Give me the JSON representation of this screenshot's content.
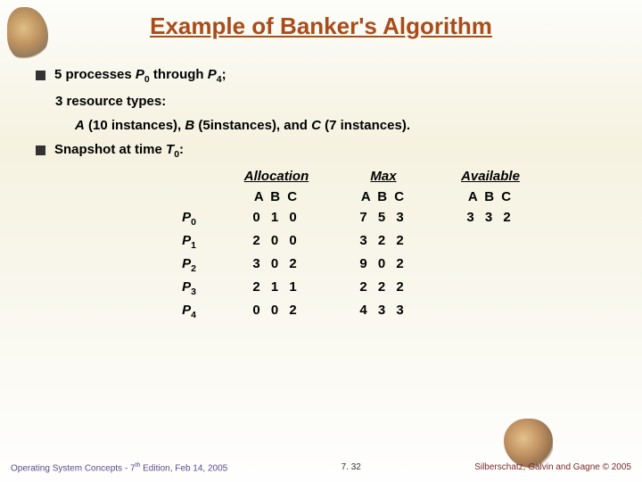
{
  "title": "Example of Banker's Algorithm",
  "bullets": {
    "b1_pre": "5 processes ",
    "b1_p0": "P",
    "b1_p0s": "0",
    "b1_mid": " through ",
    "b1_p4": "P",
    "b1_p4s": "4",
    "b1_post": ";",
    "b1_sub1": "3 resource types:",
    "b1_sub2_pre": "",
    "b1_sub2_A": "A",
    "b1_sub2_Atext": " (10 instances),  ",
    "b1_sub2_B": "B",
    "b1_sub2_Btext": " (5instances), and ",
    "b1_sub2_C": "C",
    "b1_sub2_Ctext": " (7 instances).",
    "b2_pre": "Snapshot at time ",
    "b2_T": "T",
    "b2_Ts": "0",
    "b2_post": ":"
  },
  "table": {
    "headers": {
      "alloc": "Allocation",
      "max": "Max",
      "avail": "Available"
    },
    "abc": "A B C",
    "rows": [
      {
        "proc": "P",
        "sub": "0",
        "alloc": "0 1 0",
        "max": "7 5 3",
        "avail": "3 3 2"
      },
      {
        "proc": "P",
        "sub": "1",
        "alloc": "2 0 0",
        "max": "3 2 2",
        "avail": ""
      },
      {
        "proc": "P",
        "sub": "2",
        "alloc": "3 0 2",
        "max": "9 0 2",
        "avail": ""
      },
      {
        "proc": "P",
        "sub": "3",
        "alloc": "2 1 1",
        "max": "2 2 2",
        "avail": ""
      },
      {
        "proc": "P",
        "sub": "4",
        "alloc": "0 0 2",
        "max": "4 3 3",
        "avail": ""
      }
    ]
  },
  "footer": {
    "left_pre": "Operating System Concepts - 7",
    "left_sup": "th",
    "left_post": " Edition, Feb 14, 2005",
    "center": "7. 32",
    "right": "Silberschatz, Galvin and Gagne © 2005"
  },
  "colors": {
    "title": "#a94c1a",
    "footer_left": "#5a4a8a",
    "footer_right": "#7a2a2a"
  }
}
